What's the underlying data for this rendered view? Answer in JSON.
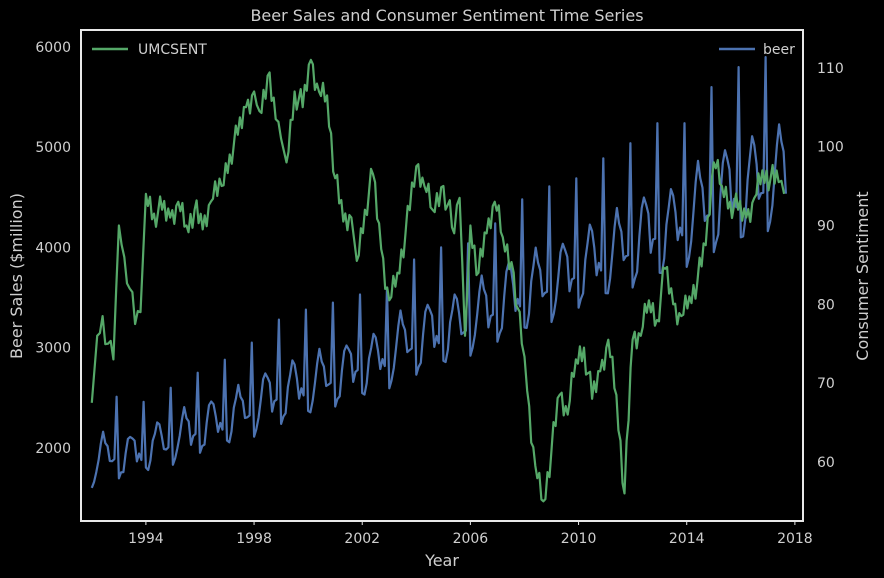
{
  "chart_data": {
    "type": "line",
    "title": "Beer Sales and Consumer Sentiment Time Series",
    "xlabel": "Year",
    "ylabel_left": "Beer Sales ($million)",
    "ylabel_right": "Consumer Sentiment",
    "x_ticks": [
      1994,
      1998,
      2002,
      2006,
      2010,
      2014,
      2018
    ],
    "y_left_ticks": [
      2000,
      3000,
      4000,
      5000,
      6000
    ],
    "y_right_ticks": [
      60,
      70,
      80,
      90,
      100,
      110
    ],
    "xlim": [
      1991.6,
      2018.3
    ],
    "ylim_left": [
      1270,
      6170
    ],
    "ylim_right": [
      52.5,
      114.8
    ],
    "grid": false,
    "colors": {
      "UMCSENT": "#55a868",
      "beer": "#4c72b0",
      "background": "#000000",
      "frame": "#e8e8e8"
    },
    "series": [
      {
        "name": "UMCSENT",
        "axis": "right",
        "legend_position": "top-left",
        "points": [
          [
            1992.0,
            67.5
          ],
          [
            1992.2,
            76.0
          ],
          [
            1992.4,
            78.5
          ],
          [
            1992.6,
            75.0
          ],
          [
            1992.8,
            73.0
          ],
          [
            1993.0,
            90.0
          ],
          [
            1993.2,
            86.0
          ],
          [
            1993.4,
            82.0
          ],
          [
            1993.6,
            77.5
          ],
          [
            1993.8,
            79.0
          ],
          [
            1994.0,
            94.0
          ],
          [
            1994.3,
            91.5
          ],
          [
            1994.6,
            92.0
          ],
          [
            1994.9,
            91.0
          ],
          [
            1995.2,
            93.0
          ],
          [
            1995.5,
            90.0
          ],
          [
            1995.8,
            92.0
          ],
          [
            1996.1,
            89.5
          ],
          [
            1996.4,
            93.0
          ],
          [
            1996.8,
            95.0
          ],
          [
            1997.1,
            99.0
          ],
          [
            1997.4,
            101.5
          ],
          [
            1997.7,
            105.0
          ],
          [
            1998.0,
            107.0
          ],
          [
            1998.2,
            104.5
          ],
          [
            1998.5,
            109.0
          ],
          [
            1998.8,
            103.5
          ],
          [
            1999.0,
            101.0
          ],
          [
            1999.2,
            98.0
          ],
          [
            1999.5,
            107.0
          ],
          [
            1999.8,
            105.0
          ],
          [
            2000.1,
            111.0
          ],
          [
            2000.4,
            107.0
          ],
          [
            2000.7,
            106.5
          ],
          [
            2001.0,
            96.0
          ],
          [
            2001.3,
            90.5
          ],
          [
            2001.6,
            91.0
          ],
          [
            2001.8,
            85.5
          ],
          [
            2002.1,
            92.0
          ],
          [
            2002.4,
            96.5
          ],
          [
            2002.7,
            87.0
          ],
          [
            2003.0,
            80.5
          ],
          [
            2003.3,
            84.0
          ],
          [
            2003.6,
            89.0
          ],
          [
            2004.0,
            97.5
          ],
          [
            2004.3,
            95.0
          ],
          [
            2004.6,
            92.0
          ],
          [
            2005.0,
            95.0
          ],
          [
            2005.4,
            89.0
          ],
          [
            2005.6,
            93.5
          ],
          [
            2005.8,
            76.0
          ],
          [
            2006.0,
            90.0
          ],
          [
            2006.3,
            84.0
          ],
          [
            2006.6,
            89.0
          ],
          [
            2006.9,
            93.0
          ],
          [
            2007.2,
            88.5
          ],
          [
            2007.6,
            84.0
          ],
          [
            2007.9,
            75.0
          ],
          [
            2008.1,
            69.0
          ],
          [
            2008.4,
            59.5
          ],
          [
            2008.7,
            55.0
          ],
          [
            2009.0,
            61.5
          ],
          [
            2009.3,
            68.5
          ],
          [
            2009.6,
            66.0
          ],
          [
            2009.9,
            73.0
          ],
          [
            2010.2,
            74.5
          ],
          [
            2010.5,
            68.0
          ],
          [
            2010.8,
            71.5
          ],
          [
            2011.1,
            75.5
          ],
          [
            2011.4,
            68.5
          ],
          [
            2011.7,
            56.0
          ],
          [
            2012.0,
            75.5
          ],
          [
            2012.3,
            76.0
          ],
          [
            2012.6,
            80.5
          ],
          [
            2012.9,
            78.0
          ],
          [
            2013.2,
            84.5
          ],
          [
            2013.5,
            80.0
          ],
          [
            2013.8,
            78.5
          ],
          [
            2014.1,
            81.0
          ],
          [
            2014.4,
            83.0
          ],
          [
            2014.7,
            87.5
          ],
          [
            2015.0,
            98.0
          ],
          [
            2015.3,
            95.0
          ],
          [
            2015.6,
            93.0
          ],
          [
            2015.9,
            92.0
          ],
          [
            2016.2,
            91.0
          ],
          [
            2016.5,
            93.5
          ],
          [
            2016.8,
            97.0
          ],
          [
            2017.1,
            96.0
          ],
          [
            2017.4,
            95.5
          ],
          [
            2017.6,
            94.0
          ]
        ]
      },
      {
        "name": "beer",
        "axis": "left",
        "legend_position": "top-right",
        "seasonal": true,
        "start": 1992.0,
        "end": 2017.65,
        "trend_start": 1640,
        "trend_end": 4500,
        "yearly_peaks": [
          2510,
          2460,
          2600,
          2750,
          2880,
          3050,
          3280,
          3380,
          3450,
          3530,
          3600,
          3880,
          4000,
          4040,
          4240,
          4480,
          4610,
          4690,
          4890,
          5040,
          5240,
          5240,
          5600,
          5800,
          5900,
          5960
        ]
      }
    ]
  }
}
